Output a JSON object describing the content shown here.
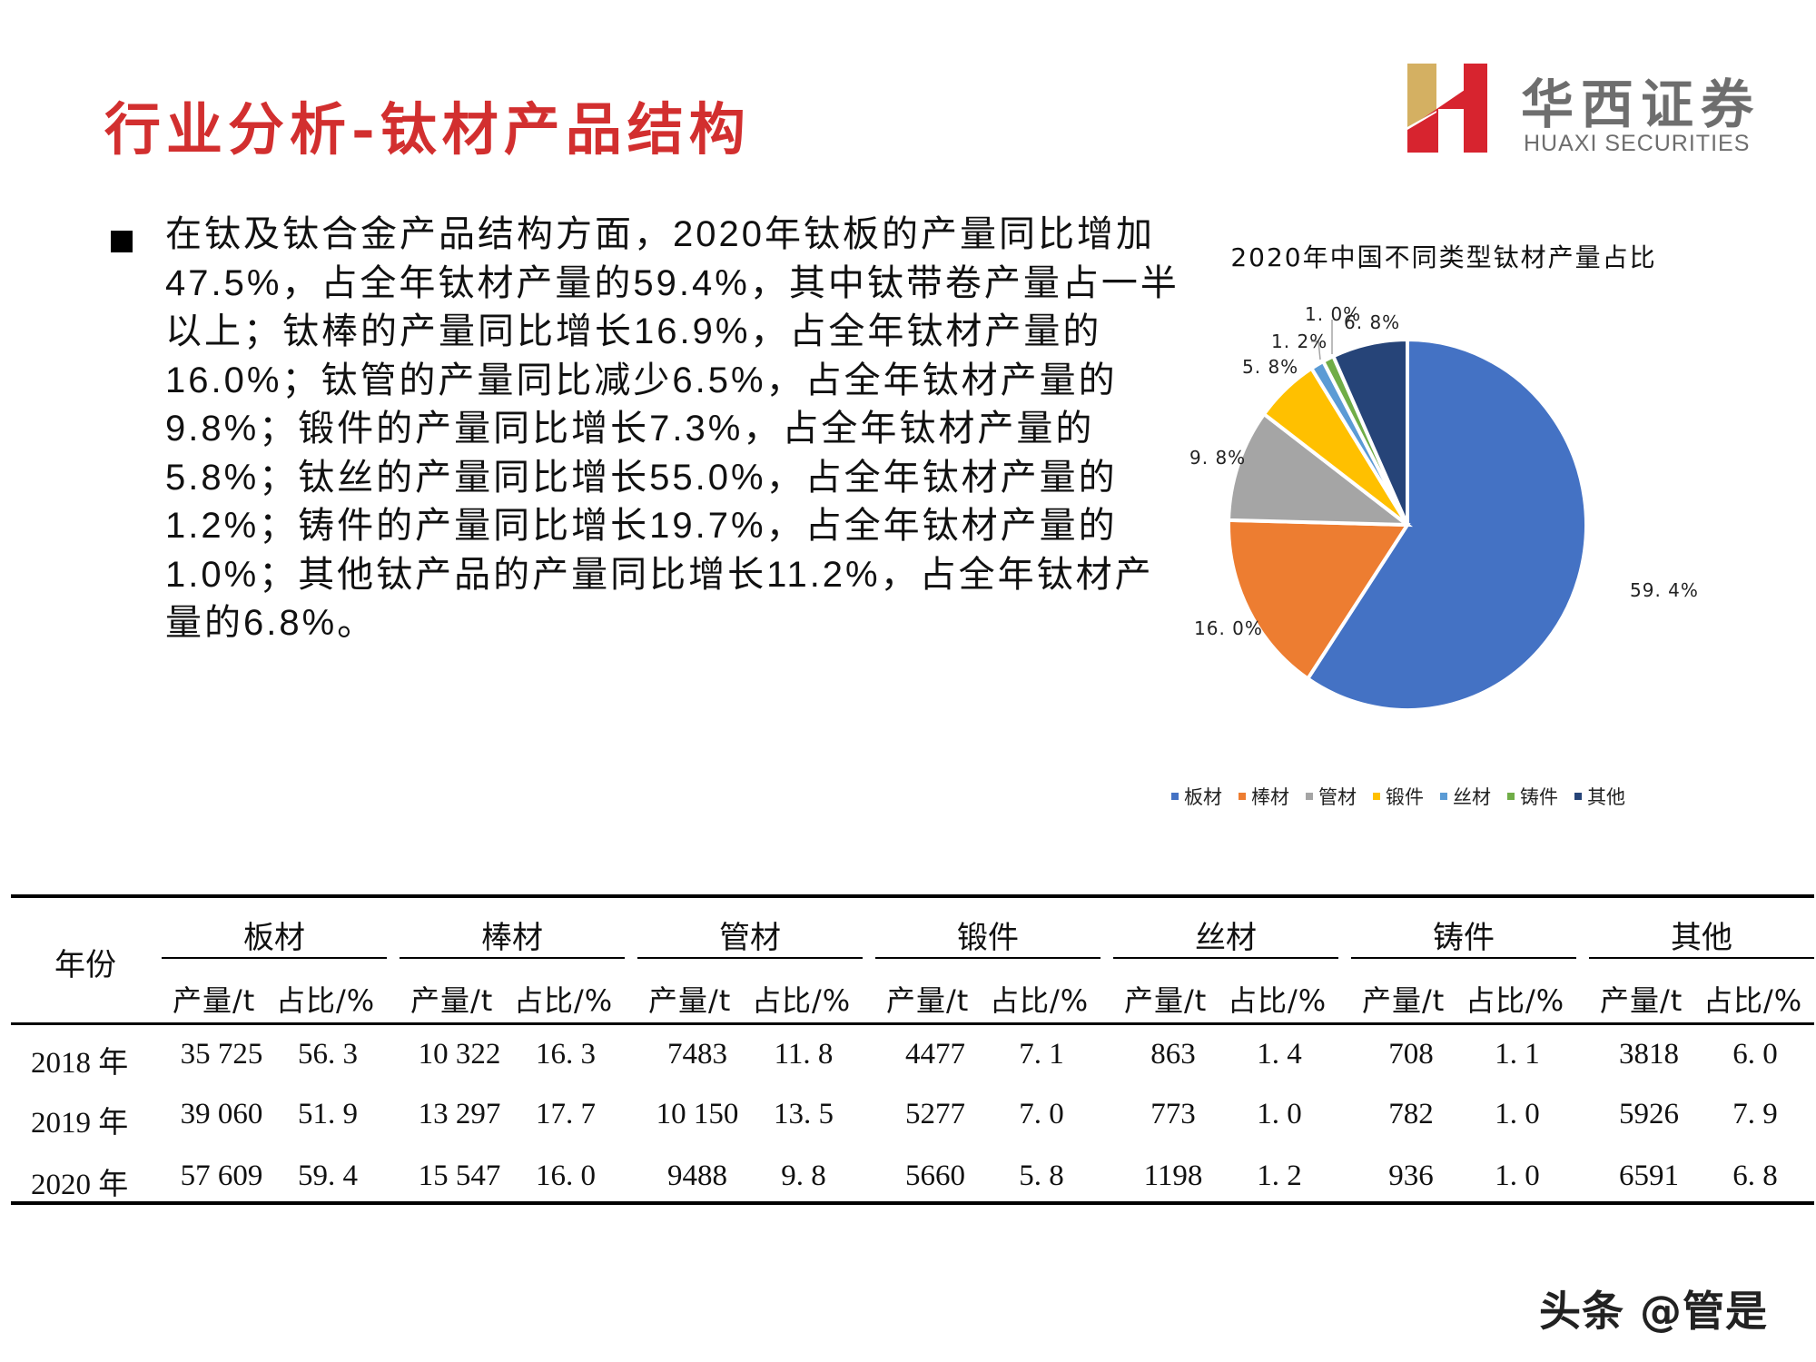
{
  "header": {
    "title": "行业分析-钛材产品结构",
    "logo": {
      "cn": "华西证券",
      "en": "HUAXI SECURITIES",
      "icon": "huaxi-h-logo-icon"
    }
  },
  "bullet": {
    "icon": "black-square-bullet-icon",
    "text": "在钛及钛合金产品结构方面，2020年钛板的产量同比增加47.5%，占全年钛材产量的59.4%，其中钛带卷产量占一半以上；钛棒的产量同比增长16.9%，占全年钛材产量的16.0%；钛管的产量同比减少6.5%，占全年钛材产量的9.8%；锻件的产量同比增长7.3%，占全年钛材产量的5.8%；钛丝的产量同比增长55.0%，占全年钛材产量的1.2%；铸件的产量同比增长19.7%，占全年钛材产量的1.0%；其他钛产品的产量同比增长11.2%，占全年钛材产量的6.8%。"
  },
  "chart_data": {
    "type": "pie",
    "title": "2020年中国不同类型钛材产量占比",
    "categories": [
      "板材",
      "棒材",
      "管材",
      "锻件",
      "丝材",
      "铸件",
      "其他"
    ],
    "values": [
      59.4,
      16.0,
      9.8,
      5.8,
      1.2,
      1.0,
      6.8
    ],
    "labels": [
      "59.4%",
      "16.0%",
      "9.8%",
      "5.8%",
      "1.2%",
      "1.0%",
      "6.8%"
    ],
    "colors": [
      "#4472C4",
      "#ED7D31",
      "#A5A5A5",
      "#FFC000",
      "#5B9BD5",
      "#70AD47",
      "#264478"
    ],
    "start_angle_deg": 0,
    "direction": "clockwise",
    "legend_position": "bottom"
  },
  "table": {
    "year_header": "年份",
    "groups": [
      "板材",
      "棒材",
      "管材",
      "锻件",
      "丝材",
      "铸件",
      "其他"
    ],
    "sub_headers": [
      "产量/t",
      "占比/%"
    ],
    "rows": [
      {
        "year": "2018 年",
        "values": [
          "35 725",
          "56. 3",
          "10 322",
          "16. 3",
          "7483",
          "11. 8",
          "4477",
          "7. 1",
          "863",
          "1. 4",
          "708",
          "1. 1",
          "3818",
          "6. 0"
        ]
      },
      {
        "year": "2019 年",
        "values": [
          "39 060",
          "51. 9",
          "13 297",
          "17. 7",
          "10 150",
          "13. 5",
          "5277",
          "7. 0",
          "773",
          "1. 0",
          "782",
          "1. 0",
          "5926",
          "7. 9"
        ]
      },
      {
        "year": "2020 年",
        "values": [
          "57 609",
          "59. 4",
          "15 547",
          "16. 0",
          "9488",
          "9. 8",
          "5660",
          "5. 8",
          "1198",
          "1. 2",
          "936",
          "1. 0",
          "6591",
          "6. 8"
        ]
      }
    ]
  },
  "watermark": "头条 @管是"
}
